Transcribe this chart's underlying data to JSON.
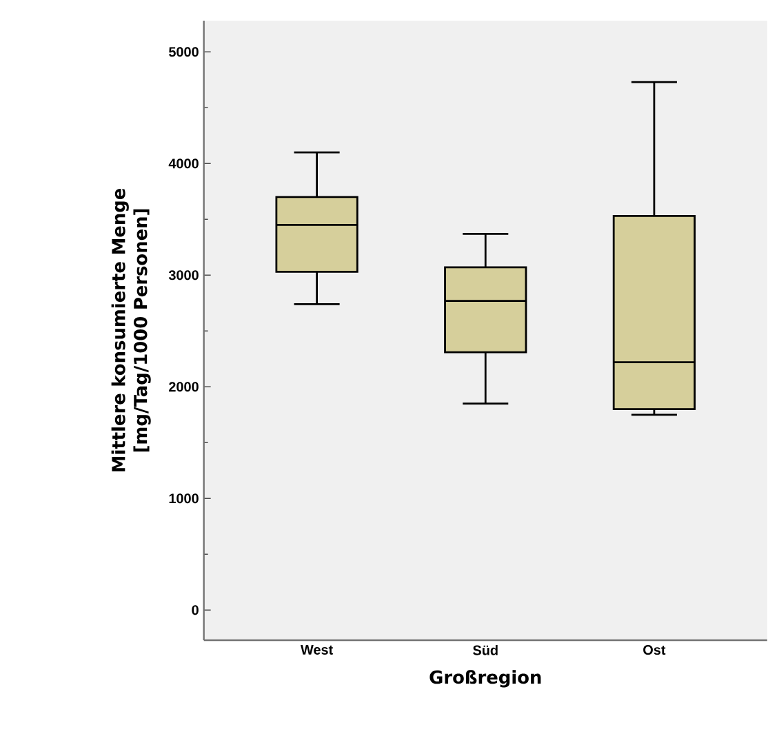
{
  "chart_data": {
    "type": "box",
    "xlabel": "Großregion",
    "ylabel": "Mittlere konsumierte Menge [mg/Tag/1000 Personen]",
    "categories": [
      "West",
      "Süd",
      "Ost"
    ],
    "color": "#d6cf9b",
    "ylim": [
      -270,
      5280
    ],
    "yticks": [
      0,
      {
        "value": 500,
        "label": null
      },
      1000,
      {
        "value": 1500,
        "label": null
      },
      2000,
      {
        "value": 2500,
        "label": null
      },
      3000,
      {
        "value": 3500,
        "label": null
      },
      4000,
      {
        "value": 4500,
        "label": null
      },
      5000
    ],
    "grid": false,
    "boxes": [
      {
        "low": 2740,
        "q1": 3030,
        "median": 3450,
        "q3": 3700,
        "high": 4100
      },
      {
        "low": 1850,
        "q1": 2310,
        "median": 2770,
        "q3": 3070,
        "high": 3370
      },
      {
        "low": 1750,
        "q1": 1800,
        "median": 2220,
        "q3": 3530,
        "high": 4730
      }
    ]
  }
}
